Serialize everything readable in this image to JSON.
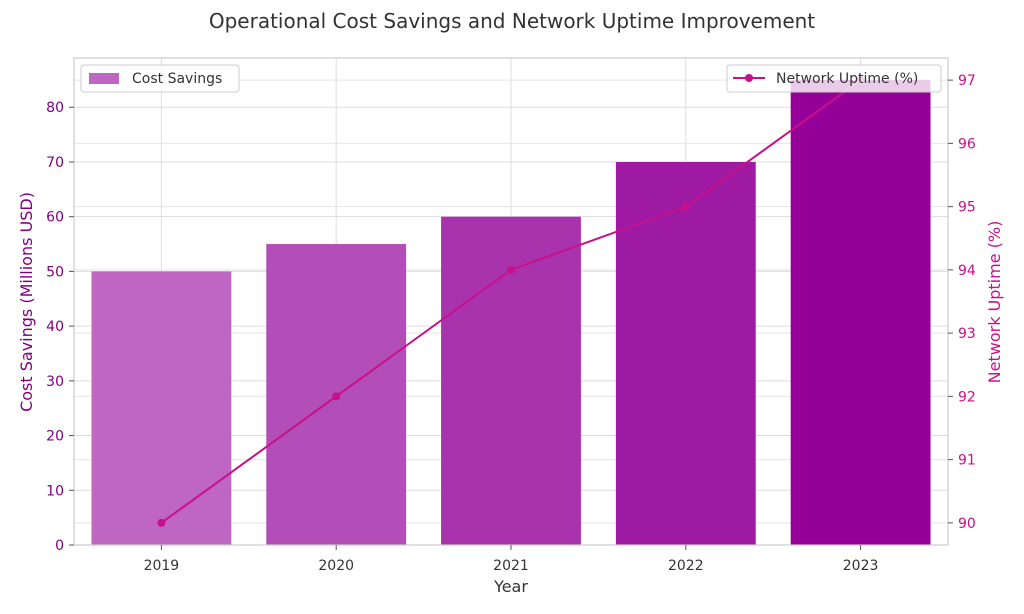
{
  "chart_data": {
    "type": "bar",
    "title": "Operational Cost Savings and Network Uptime Improvement",
    "xlabel": "Year",
    "categories": [
      "2019",
      "2020",
      "2021",
      "2022",
      "2023"
    ],
    "series": [
      {
        "name": "Cost Savings",
        "type": "bar",
        "axis": "left",
        "values": [
          50,
          55,
          60,
          70,
          85
        ],
        "colors": [
          "#bf66c2",
          "#b34db7",
          "#a933ad",
          "#9f1aa3",
          "#950098"
        ]
      },
      {
        "name": "Network Uptime (%)",
        "type": "line",
        "axis": "right",
        "values": [
          90,
          92,
          94,
          95,
          97
        ],
        "color": "#c7108a"
      }
    ],
    "y_left": {
      "label": "Cost Savings (Millions USD)",
      "ylim": [
        0,
        89
      ],
      "ticks": [
        0,
        10,
        20,
        30,
        40,
        50,
        60,
        70,
        80
      ],
      "color": "#800080"
    },
    "y_right": {
      "label": "Network Uptime (%)",
      "ylim": [
        89.65,
        97.35
      ],
      "ticks": [
        90,
        91,
        92,
        93,
        94,
        95,
        96,
        97
      ],
      "color": "#c7108a"
    },
    "grid": true,
    "legend_bar_position": "upper-left",
    "legend_line_position": "upper-right"
  }
}
